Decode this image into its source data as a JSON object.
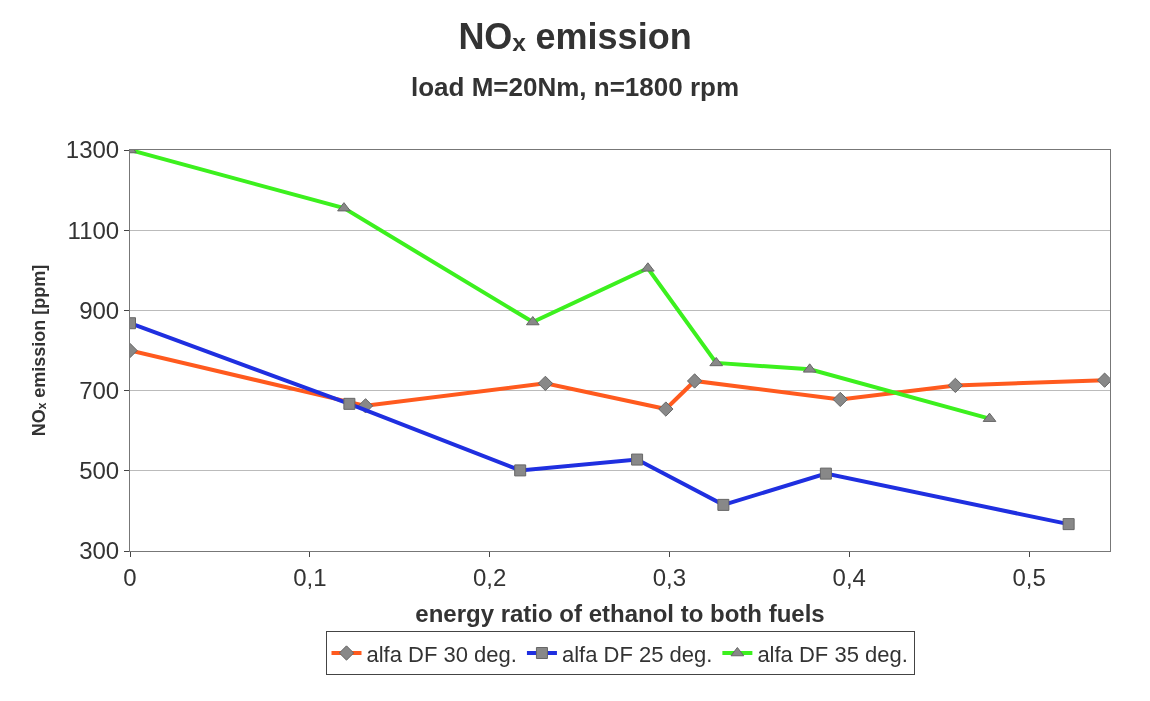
{
  "chart_data": {
    "type": "line",
    "title": "NOₓ emission",
    "subtitle": "load M=20Nm, n=1800 rpm",
    "xlabel": "energy ratio of ethanol to both fuels",
    "ylabel": "NOₓ emission [ppm]",
    "xlim": [
      0,
      0.545
    ],
    "xticks": [
      {
        "value": 0,
        "label": "0"
      },
      {
        "value": 0.1,
        "label": "0,1"
      },
      {
        "value": 0.2,
        "label": "0,2"
      },
      {
        "value": 0.3,
        "label": "0,3"
      },
      {
        "value": 0.4,
        "label": "0,4"
      },
      {
        "value": 0.5,
        "label": "0,5"
      }
    ],
    "ylim": [
      300,
      1300
    ],
    "yticks": [
      300,
      500,
      700,
      900,
      1100,
      1300
    ],
    "grid": "y",
    "legend": "bottom",
    "line_style": "solid",
    "series": [
      {
        "name": "alfa DF 30 deg.",
        "color": "#ff5a1e",
        "marker": "diamond",
        "x": [
          0,
          0.131,
          0.231,
          0.298,
          0.314,
          0.395,
          0.459,
          0.542
        ],
        "values": [
          800,
          662,
          718,
          654,
          724,
          678,
          713,
          726
        ]
      },
      {
        "name": "alfa DF 25 deg.",
        "color": "#1f2fe0",
        "marker": "square",
        "x": [
          0,
          0.122,
          0.217,
          0.282,
          0.33,
          0.387,
          0.522
        ],
        "values": [
          868,
          667,
          501,
          528,
          415,
          493,
          367
        ]
      },
      {
        "name": "alfa DF 35 deg.",
        "color": "#3cf01e",
        "marker": "triangle",
        "x": [
          0,
          0.119,
          0.224,
          0.288,
          0.326,
          0.378,
          0.478
        ],
        "values": [
          1300,
          1155,
          871,
          1005,
          769,
          753,
          630
        ]
      }
    ]
  }
}
